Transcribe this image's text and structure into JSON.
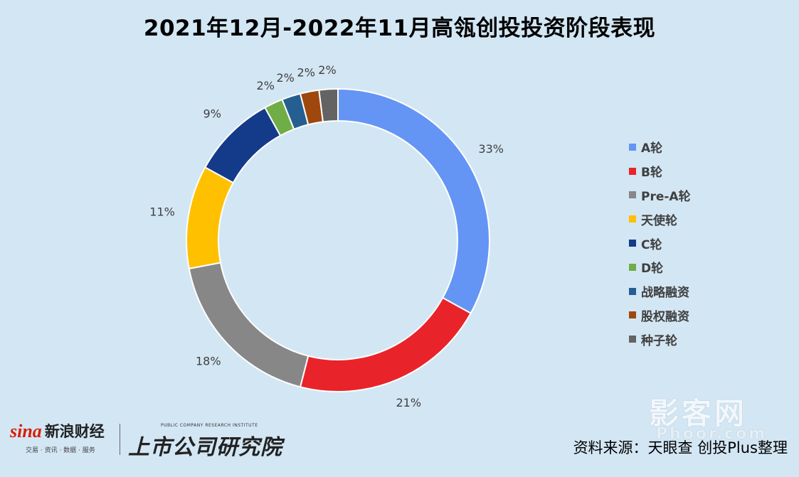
{
  "chart_data": {
    "type": "pie",
    "title": "2021年12月-2022年11月高瓴创投投资阶段表现",
    "hole": true,
    "legend_position": "right",
    "categories": [
      "A轮",
      "B轮",
      "Pre-A轮",
      "天使轮",
      "C轮",
      "D轮",
      "战略融资",
      "股权融资",
      "种子轮"
    ],
    "values": [
      33,
      21,
      18,
      11,
      9,
      2,
      2,
      2,
      2
    ],
    "value_labels": [
      "33%",
      "21%",
      "18%",
      "11%",
      "9%",
      "2%",
      "2%",
      "2%",
      "2%"
    ],
    "colors": [
      "#6495f5",
      "#e8242a",
      "#878787",
      "#ffc000",
      "#143b8a",
      "#70ad47",
      "#255e91",
      "#9e480e",
      "#636363"
    ]
  },
  "footer": {
    "sina_word": "sina",
    "sina_name": "新浪财经",
    "sina_sub": "交易 · 资讯 · 数据 · 服务",
    "institute_en": "PUBLIC COMPANY RESEARCH INSTITUTE",
    "institute_cn": "上市公司研究院",
    "source": "资料来源：天眼查 创投Plus整理",
    "watermark": "影客网",
    "watermark_sub": "Phoor.com"
  }
}
